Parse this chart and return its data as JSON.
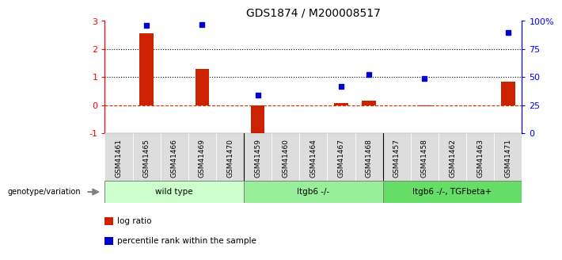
{
  "title": "GDS1874 / M200008517",
  "samples": [
    "GSM41461",
    "GSM41465",
    "GSM41466",
    "GSM41469",
    "GSM41470",
    "GSM41459",
    "GSM41460",
    "GSM41464",
    "GSM41467",
    "GSM41468",
    "GSM41457",
    "GSM41458",
    "GSM41462",
    "GSM41463",
    "GSM41471"
  ],
  "log_ratio": [
    0.0,
    2.55,
    0.0,
    1.3,
    0.0,
    -1.05,
    0.0,
    0.0,
    0.07,
    0.17,
    0.0,
    -0.03,
    0.0,
    0.0,
    0.85
  ],
  "pct_rank": [
    null,
    96,
    null,
    97,
    null,
    34,
    null,
    null,
    42,
    52,
    null,
    49,
    null,
    null,
    90
  ],
  "groups": [
    {
      "label": "wild type",
      "start": 0,
      "end": 5,
      "color": "#ccffcc"
    },
    {
      "label": "Itgb6 -/-",
      "start": 5,
      "end": 10,
      "color": "#99ee99"
    },
    {
      "label": "Itgb6 -/-, TGFbeta+",
      "start": 10,
      "end": 15,
      "color": "#66dd66"
    }
  ],
  "ylim_left": [
    -1,
    3
  ],
  "ylim_right": [
    0,
    100
  ],
  "bar_color": "#cc2200",
  "dot_color": "#0000cc",
  "zero_line_color": "#cc3300",
  "hline_y": [
    1,
    2
  ],
  "tick_bg_color": "#dddddd",
  "legend_items": [
    {
      "label": "log ratio",
      "color": "#cc2200"
    },
    {
      "label": "percentile rank within the sample",
      "color": "#0000cc"
    }
  ]
}
